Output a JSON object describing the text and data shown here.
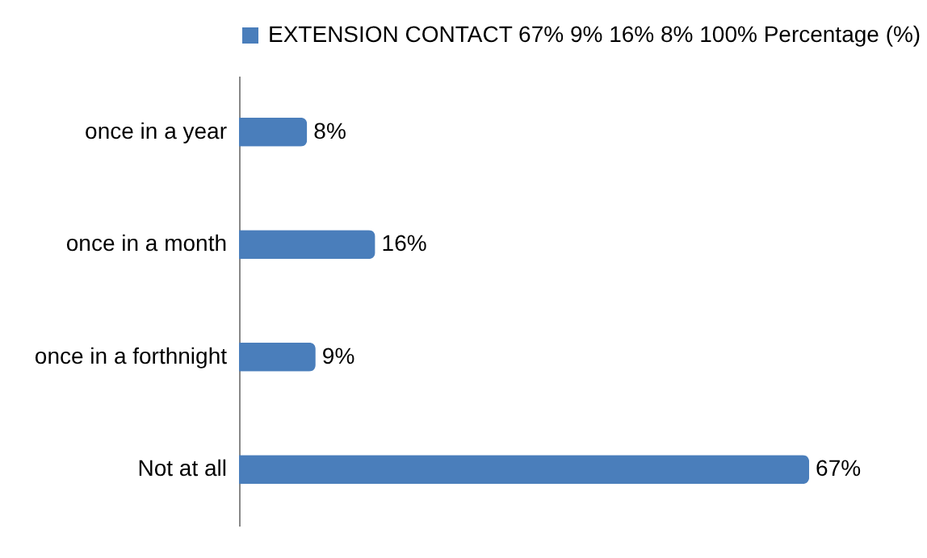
{
  "chart_data": {
    "type": "bar",
    "orientation": "horizontal",
    "legend": "top",
    "categories": [
      "once in a year",
      "once in a month",
      "once in a forthnight",
      "Not at all"
    ],
    "series": [
      {
        "name": "EXTENSION CONTACT 67% 9% 16% 8% 100% Percentage (%)",
        "color": "#4a7ebb",
        "values": [
          8,
          16,
          9,
          67
        ],
        "value_labels": [
          "8%",
          "16%",
          "9%",
          "67%"
        ]
      }
    ]
  }
}
